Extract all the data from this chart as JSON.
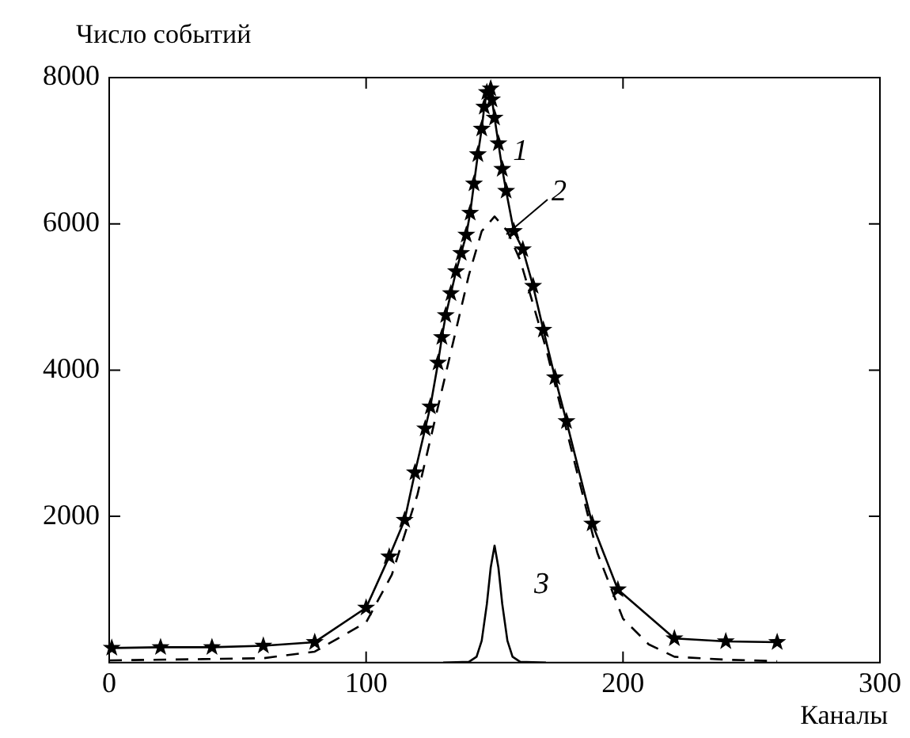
{
  "chart_data": {
    "type": "line",
    "ylabel": "Число событий",
    "xlabel": "Каналы",
    "xlim": [
      0,
      300
    ],
    "xticks": [
      0,
      100,
      200,
      300
    ],
    "ylim": [
      0,
      8000
    ],
    "yticks": [
      2000,
      4000,
      6000,
      8000
    ],
    "grid": false,
    "legend": false,
    "annotations": [
      "1",
      "2",
      "3"
    ],
    "series": [
      {
        "color": "#000000",
        "marker": "star",
        "line_style": "solid",
        "x": [
          1,
          20,
          40,
          60,
          80,
          100,
          109,
          115,
          119,
          123,
          125,
          128,
          129.5,
          131,
          133,
          135,
          137,
          139,
          140.5,
          142,
          143.5,
          145,
          146,
          147,
          148.5,
          149,
          150,
          151.5,
          153,
          154.5,
          157.5,
          161,
          165,
          169,
          173.5,
          178,
          188,
          198,
          220,
          240,
          260
        ],
        "values": [
          200,
          210,
          210,
          230,
          280,
          750,
          1450,
          1950,
          2600,
          3200,
          3500,
          4100,
          4450,
          4750,
          5050,
          5350,
          5600,
          5850,
          6150,
          6550,
          6950,
          7300,
          7600,
          7800,
          7850,
          7700,
          7450,
          7100,
          6750,
          6450,
          5900,
          5650,
          5150,
          4550,
          3900,
          3300,
          1900,
          1000,
          330,
          290,
          280
        ]
      },
      {
        "color": "#000000",
        "marker": "none",
        "line_style": "dashed",
        "x": [
          0,
          60,
          80,
          90,
          100,
          110,
          120,
          130,
          140,
          145,
          150,
          155,
          160,
          170,
          180,
          190,
          200,
          210,
          220,
          240,
          260
        ],
        "values": [
          30,
          60,
          150,
          350,
          550,
          1200,
          2300,
          3800,
          5300,
          5900,
          6100,
          5900,
          5500,
          4300,
          2900,
          1500,
          600,
          250,
          80,
          40,
          20
        ]
      },
      {
        "color": "#000000",
        "marker": "none",
        "line_style": "solid",
        "x": [
          130,
          140,
          143,
          145,
          147,
          148.5,
          150,
          151.5,
          153,
          155,
          157,
          160,
          170
        ],
        "values": [
          0,
          10,
          80,
          300,
          800,
          1300,
          1600,
          1300,
          800,
          300,
          80,
          10,
          0
        ]
      }
    ]
  }
}
